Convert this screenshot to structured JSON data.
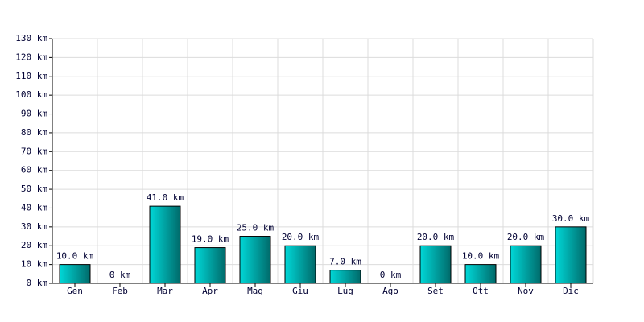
{
  "chart_data": {
    "type": "bar",
    "categories": [
      "Gen",
      "Feb",
      "Mar",
      "Apr",
      "Mag",
      "Giu",
      "Lug",
      "Ago",
      "Set",
      "Ott",
      "Nov",
      "Dic"
    ],
    "values": [
      10,
      0,
      41,
      19,
      25,
      20,
      7,
      0,
      20,
      10,
      20,
      30
    ],
    "value_labels": [
      "10.0 km",
      "0 km",
      "41.0 km",
      "19.0 km",
      "25.0 km",
      "20.0 km",
      "7.0 km",
      "0 km",
      "20.0 km",
      "10.0 km",
      "20.0 km",
      "30.0 km"
    ],
    "color": "#00d8d8",
    "ylim": [
      0,
      130
    ],
    "yticks": [
      {
        "value": 0,
        "label": "0 km"
      },
      {
        "value": 10,
        "label": "10 km"
      },
      {
        "value": 20,
        "label": "20 km"
      },
      {
        "value": 30,
        "label": "30 km"
      },
      {
        "value": 40,
        "label": "40 km"
      },
      {
        "value": 50,
        "label": "50 km"
      },
      {
        "value": 60,
        "label": "60 km"
      },
      {
        "value": 70,
        "label": "70 km"
      },
      {
        "value": 80,
        "label": "80 km"
      },
      {
        "value": 90,
        "label": "90 km"
      },
      {
        "value": 100,
        "label": "100 km"
      },
      {
        "value": 110,
        "label": "110 km"
      },
      {
        "value": 120,
        "label": "120 km"
      },
      {
        "value": 130,
        "label": "130 km"
      }
    ],
    "grid": true
  }
}
